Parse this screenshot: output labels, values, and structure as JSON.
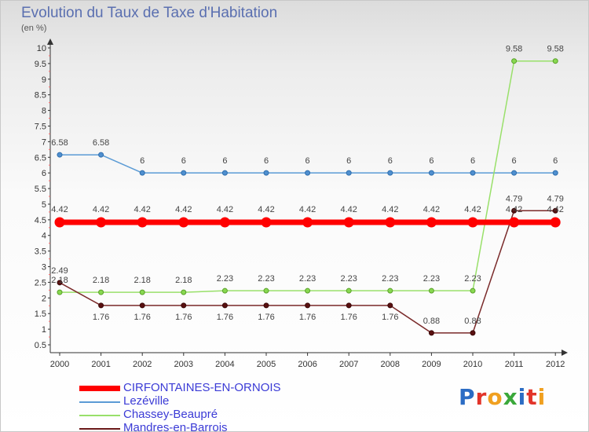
{
  "title": "Evolution du Taux de Taxe d'Habitation",
  "unit_label": "(en %)",
  "logo": "Proxiti",
  "chart_data": {
    "type": "line",
    "title": "Evolution du Taux de Taxe d'Habitation",
    "ylabel": "(en %)",
    "xlabel": "",
    "x": [
      "2000",
      "2001",
      "2002",
      "2003",
      "2004",
      "2005",
      "2006",
      "2007",
      "2008",
      "2009",
      "2010",
      "2011",
      "2012"
    ],
    "yticks": [
      "0.5",
      "1",
      "1.5",
      "2",
      "2.5",
      "3",
      "3.5",
      "4",
      "4.5",
      "5",
      "5.5",
      "6",
      "6.5",
      "7",
      "7.5",
      "8",
      "8.5",
      "9",
      "9.5",
      "10"
    ],
    "ylim": [
      0.5,
      10
    ],
    "grid": false,
    "legend_position": "bottom",
    "series": [
      {
        "name": "CIRFONTAINES-EN-ORNOIS",
        "color": "#ff0000",
        "values": [
          4.42,
          4.42,
          4.42,
          4.42,
          4.42,
          4.42,
          4.42,
          4.42,
          4.42,
          4.42,
          4.42,
          4.42,
          4.42
        ],
        "labels": [
          "4.42",
          "4.42",
          "4.42",
          "4.42",
          "4.42",
          "4.42",
          "4.42",
          "4.42",
          "4.42",
          "4.42",
          "4.42",
          "4.42",
          "4.42"
        ]
      },
      {
        "name": "Lezéville",
        "color": "#5b9bd5",
        "values": [
          6.58,
          6.58,
          6,
          6,
          6,
          6,
          6,
          6,
          6,
          6,
          6,
          6,
          6
        ],
        "labels": [
          "6.58",
          "6.58",
          "6",
          "6",
          "6",
          "6",
          "6",
          "6",
          "6",
          "6",
          "6",
          "6",
          "6"
        ]
      },
      {
        "name": "Chassey-Beaupré",
        "color": "#99e06a",
        "values": [
          2.18,
          2.18,
          2.18,
          2.18,
          2.23,
          2.23,
          2.23,
          2.23,
          2.23,
          2.23,
          2.23,
          9.58,
          9.58
        ],
        "labels": [
          "2.18",
          "2.18",
          "2.18",
          "2.18",
          "2.23",
          "2.23",
          "2.23",
          "2.23",
          "2.23",
          "2.23",
          "2.23",
          "9.58",
          "9.58"
        ]
      },
      {
        "name": "Mandres-en-Barrois",
        "color": "#6b1a1a",
        "values": [
          2.49,
          1.76,
          1.76,
          1.76,
          1.76,
          1.76,
          1.76,
          1.76,
          1.76,
          0.88,
          0.88,
          4.79,
          4.79
        ],
        "labels": [
          "2.49",
          "1.76",
          "1.76",
          "1.76",
          "1.76",
          "1.76",
          "1.76",
          "1.76",
          "1.76",
          "0.88",
          "0.88",
          "4.79",
          "4.79"
        ]
      }
    ]
  }
}
